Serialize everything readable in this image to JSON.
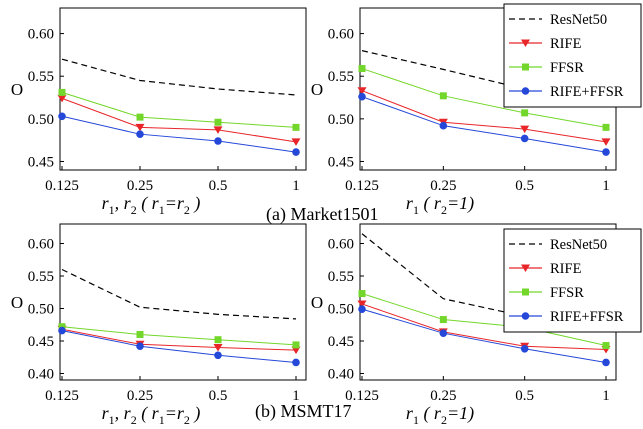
{
  "captions": {
    "a": "(a) Market1501",
    "b": "(b) MSMT17"
  },
  "colors": {
    "ResNet50": "#000000",
    "RIFE": "#e8262a",
    "FFSR": "#72d72a",
    "RIFE+FFSR": "#2548d8"
  },
  "chart_data": [
    {
      "id": "market-left",
      "type": "line",
      "dataset": "Market1501",
      "ylabel": "O",
      "xlabel": [
        "r",
        "1",
        ", r",
        "2",
        " ( r",
        "1",
        "=r",
        "2",
        " )"
      ],
      "x": [
        "0.125",
        "0.25",
        "0.5",
        "1"
      ],
      "ylim": [
        0.44,
        0.63
      ],
      "yticks": [
        "0.45",
        "0.50",
        "0.55",
        "0.60"
      ],
      "series": [
        {
          "name": "ResNet50",
          "values": [
            0.57,
            0.545,
            0.535,
            0.528
          ]
        },
        {
          "name": "RIFE",
          "values": [
            0.524,
            0.49,
            0.487,
            0.473
          ]
        },
        {
          "name": "FFSR",
          "values": [
            0.531,
            0.502,
            0.496,
            0.49
          ]
        },
        {
          "name": "RIFE+FFSR",
          "values": [
            0.503,
            0.482,
            0.474,
            0.461
          ]
        }
      ]
    },
    {
      "id": "market-right",
      "type": "line",
      "dataset": "Market1501",
      "ylabel": "O",
      "xlabel": [
        "r",
        "1",
        " ( r",
        "2",
        "=1)"
      ],
      "x": [
        "0.125",
        "0.25",
        "0.5",
        "1"
      ],
      "ylim": [
        0.44,
        0.63
      ],
      "yticks": [
        "0.45",
        "0.50",
        "0.55",
        "0.60"
      ],
      "legend": [
        "ResNet50",
        "RIFE",
        "FFSR",
        "RIFE+FFSR"
      ],
      "series": [
        {
          "name": "ResNet50",
          "values": [
            0.58,
            0.558,
            0.535,
            0.528
          ]
        },
        {
          "name": "RIFE",
          "values": [
            0.533,
            0.496,
            0.488,
            0.473
          ]
        },
        {
          "name": "FFSR",
          "values": [
            0.559,
            0.527,
            0.507,
            0.49
          ]
        },
        {
          "name": "RIFE+FFSR",
          "values": [
            0.526,
            0.492,
            0.477,
            0.461
          ]
        }
      ]
    },
    {
      "id": "msmt-left",
      "type": "line",
      "dataset": "MSMT17",
      "ylabel": "O",
      "xlabel": [
        "r",
        "1",
        ", r",
        "2",
        " ( r",
        "1",
        "=r",
        "2",
        " )"
      ],
      "x": [
        "0.125",
        "0.25",
        "0.5",
        "1"
      ],
      "ylim": [
        0.39,
        0.63
      ],
      "yticks": [
        "0.40",
        "0.45",
        "0.50",
        "0.55",
        "0.60"
      ],
      "series": [
        {
          "name": "ResNet50",
          "values": [
            0.56,
            0.502,
            0.491,
            0.484
          ]
        },
        {
          "name": "RIFE",
          "values": [
            0.468,
            0.445,
            0.44,
            0.436
          ]
        },
        {
          "name": "FFSR",
          "values": [
            0.472,
            0.46,
            0.452,
            0.444
          ]
        },
        {
          "name": "RIFE+FFSR",
          "values": [
            0.466,
            0.442,
            0.428,
            0.417
          ]
        }
      ]
    },
    {
      "id": "msmt-right",
      "type": "line",
      "dataset": "MSMT17",
      "ylabel": "O",
      "xlabel": [
        "r",
        "1",
        " ( r",
        "2",
        "=1)"
      ],
      "x": [
        "0.125",
        "0.25",
        "0.5",
        "1"
      ],
      "ylim": [
        0.39,
        0.63
      ],
      "yticks": [
        "0.40",
        "0.45",
        "0.50",
        "0.55",
        "0.60"
      ],
      "legend": [
        "ResNet50",
        "RIFE",
        "FFSR",
        "RIFE+FFSR"
      ],
      "series": [
        {
          "name": "ResNet50",
          "values": [
            0.615,
            0.515,
            0.488,
            0.484
          ]
        },
        {
          "name": "RIFE",
          "values": [
            0.507,
            0.464,
            0.442,
            0.437
          ]
        },
        {
          "name": "FFSR",
          "values": [
            0.523,
            0.483,
            0.471,
            0.443
          ]
        },
        {
          "name": "RIFE+FFSR",
          "values": [
            0.499,
            0.462,
            0.438,
            0.417
          ]
        }
      ]
    }
  ]
}
